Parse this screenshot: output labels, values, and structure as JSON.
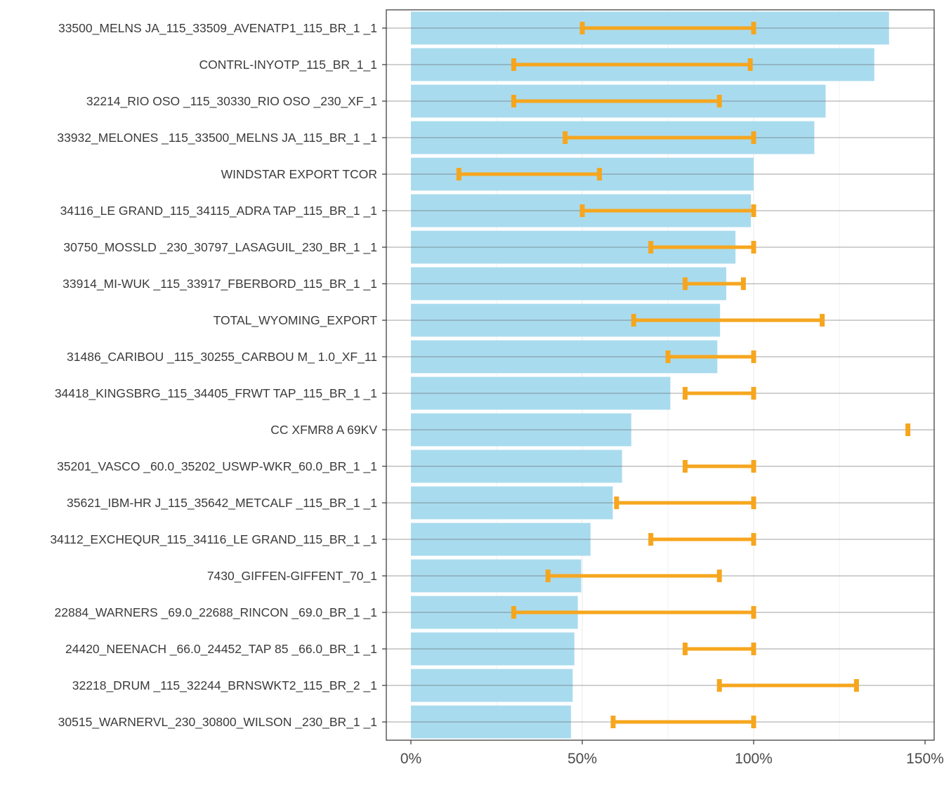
{
  "chart_data": {
    "type": "bar",
    "orientation": "horizontal",
    "title": "",
    "xlabel": "",
    "ylabel": "",
    "xlim": [
      -0.07,
      1.5
    ],
    "x_ticks": [
      0,
      0.5,
      1.0,
      1.5
    ],
    "x_tick_labels": [
      "0%",
      "50%",
      "100%",
      "150%"
    ],
    "grid": true,
    "bar_color": "#a9dbee",
    "errorbar_color": "#f6a61e",
    "categories": [
      "33500_MELNS JA_115_33509_AVENATP1_115_BR_1 _1",
      "CONTRL-INYOTP_115_BR_1_1",
      "32214_RIO OSO _115_30330_RIO OSO _230_XF_1",
      "33932_MELONES _115_33500_MELNS JA_115_BR_1 _1",
      "WINDSTAR EXPORT TCOR",
      "34116_LE GRAND_115_34115_ADRA TAP_115_BR_1 _1",
      "30750_MOSSLD  _230_30797_LASAGUIL_230_BR_1 _1",
      "33914_MI-WUK  _115_33917_FBERBORD_115_BR_1 _1",
      "TOTAL_WYOMING_EXPORT",
      "31486_CARIBOU _115_30255_CARBOU M_ 1.0_XF_11",
      "34418_KINGSBRG_115_34405_FRWT TAP_115_BR_1 _1",
      "CC XFMR8 A  69KV",
      "35201_VASCO   _60.0_35202_USWP-WKR_60.0_BR_1 _1",
      "35621_IBM-HR J_115_35642_METCALF _115_BR_1 _1",
      "34112_EXCHEQUR_115_34116_LE GRAND_115_BR_1 _1",
      "7430_GIFFEN-GIFFENT_70_1",
      "22884_WARNERS _69.0_22688_RINCON  _69.0_BR_1 _1",
      "24420_NEENACH _66.0_24452_TAP 85  _66.0_BR_1 _1",
      "32218_DRUM    _115_32244_BRNSWKT2_115_BR_2 _1",
      "30515_WARNERVL_230_30800_WILSON  _230_BR_1 _1"
    ],
    "values": [
      1.395,
      1.352,
      1.21,
      1.177,
      1.0,
      0.992,
      0.947,
      0.92,
      0.902,
      0.894,
      0.757,
      0.643,
      0.616,
      0.589,
      0.524,
      0.497,
      0.487,
      0.477,
      0.472,
      0.467
    ],
    "error_low": [
      0.5,
      0.3,
      0.3,
      0.45,
      0.14,
      0.5,
      0.7,
      0.8,
      0.65,
      0.75,
      0.8,
      1.45,
      0.8,
      0.6,
      0.7,
      0.4,
      0.3,
      0.8,
      0.9,
      0.59
    ],
    "error_high": [
      1.0,
      0.99,
      0.9,
      1.0,
      0.55,
      1.0,
      1.0,
      0.97,
      1.2,
      1.0,
      1.0,
      1.45,
      1.0,
      1.0,
      1.0,
      0.9,
      1.0,
      1.0,
      1.3,
      1.0
    ]
  }
}
